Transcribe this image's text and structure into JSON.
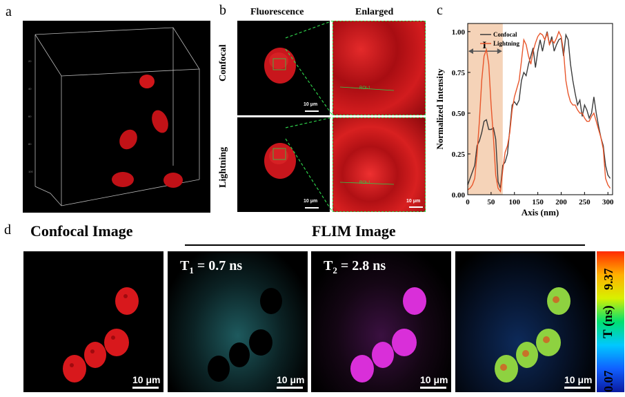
{
  "panels": {
    "a": {
      "label": "a"
    },
    "b": {
      "label": "b",
      "col_headers": [
        "Fluorescence",
        "Enlarged"
      ],
      "row_labels": [
        "Confocal",
        "Lightning"
      ],
      "roi_label": "ROI-1",
      "scale_label": "10 μm"
    },
    "c": {
      "label": "c"
    },
    "d": {
      "label": "d",
      "confocal_title": "Confocal Image",
      "flim_title": "FLIM Image",
      "scale_label": "10 μm",
      "t1": {
        "base": "T",
        "sub": "1",
        "rest": " = 0.7 ns"
      },
      "t2": {
        "base": "T",
        "sub": "2",
        "rest": " = 2.8 ns"
      },
      "colorbar": {
        "label": "T (ns)",
        "max": "9.37",
        "min": "0.07",
        "colors": [
          "#0a1aa0",
          "#1060ff",
          "#00c8ff",
          "#00e070",
          "#d8f000",
          "#ffb000",
          "#ff2a00"
        ]
      }
    }
  },
  "chart_data": {
    "type": "line",
    "xlabel": "Axis (nm)",
    "ylabel": "Normalized Intensity",
    "xlim": [
      0,
      310
    ],
    "ylim": [
      0,
      1.05
    ],
    "xticks": [
      0,
      50,
      100,
      150,
      200,
      250,
      300
    ],
    "yticks": [
      0.0,
      0.25,
      0.5,
      0.75,
      1.0
    ],
    "ytick_labels": [
      "0.00",
      "0.25",
      "0.50",
      "0.75",
      "1.00"
    ],
    "legend": "top-left",
    "region": {
      "label": "I",
      "x_start": 0,
      "x_end": 75,
      "color": "#f5d3b8"
    },
    "series": [
      {
        "name": "Confocal",
        "color": "#3a3a3a",
        "x": [
          0,
          5,
          10,
          15,
          20,
          25,
          30,
          35,
          40,
          45,
          50,
          55,
          60,
          65,
          70,
          75,
          80,
          85,
          90,
          95,
          100,
          105,
          110,
          115,
          120,
          125,
          130,
          135,
          140,
          145,
          150,
          155,
          160,
          165,
          170,
          175,
          180,
          185,
          190,
          195,
          200,
          205,
          210,
          215,
          220,
          225,
          230,
          235,
          240,
          245,
          250,
          255,
          260,
          265,
          270,
          275,
          280,
          285,
          290,
          295,
          300,
          305
        ],
        "y": [
          0.06,
          0.1,
          0.14,
          0.18,
          0.3,
          0.33,
          0.38,
          0.45,
          0.46,
          0.4,
          0.4,
          0.41,
          0.34,
          0.08,
          0.04,
          0.18,
          0.2,
          0.25,
          0.4,
          0.55,
          0.57,
          0.55,
          0.58,
          0.7,
          0.75,
          0.73,
          0.8,
          0.85,
          0.9,
          0.78,
          0.88,
          0.95,
          0.88,
          0.95,
          1.0,
          0.92,
          0.97,
          0.88,
          0.92,
          0.95,
          0.96,
          0.85,
          0.98,
          0.95,
          0.8,
          0.7,
          0.62,
          0.55,
          0.58,
          0.48,
          0.55,
          0.52,
          0.47,
          0.5,
          0.6,
          0.5,
          0.42,
          0.35,
          0.3,
          0.18,
          0.12,
          0.1
        ]
      },
      {
        "name": "Lightning",
        "color": "#e8552a",
        "x": [
          0,
          5,
          10,
          15,
          20,
          25,
          30,
          35,
          40,
          45,
          50,
          55,
          60,
          65,
          70,
          75,
          80,
          85,
          90,
          95,
          100,
          105,
          110,
          115,
          120,
          125,
          130,
          135,
          140,
          145,
          150,
          155,
          160,
          165,
          170,
          175,
          180,
          185,
          190,
          195,
          200,
          205,
          210,
          215,
          220,
          225,
          230,
          235,
          240,
          245,
          250,
          255,
          260,
          265,
          270,
          275,
          280,
          285,
          290,
          295,
          300,
          305
        ],
        "y": [
          0.03,
          0.04,
          0.06,
          0.1,
          0.25,
          0.45,
          0.7,
          0.85,
          0.89,
          0.8,
          0.55,
          0.35,
          0.12,
          0.04,
          0.02,
          0.15,
          0.26,
          0.3,
          0.38,
          0.52,
          0.6,
          0.65,
          0.7,
          0.82,
          0.95,
          0.92,
          0.85,
          0.8,
          0.88,
          0.93,
          0.97,
          0.99,
          0.98,
          0.95,
          0.99,
          0.92,
          0.95,
          0.93,
          0.96,
          1.0,
          0.97,
          0.88,
          0.7,
          0.62,
          0.57,
          0.55,
          0.55,
          0.52,
          0.5,
          0.5,
          0.47,
          0.45,
          0.45,
          0.48,
          0.5,
          0.45,
          0.4,
          0.35,
          0.28,
          0.1,
          0.06,
          0.04
        ]
      }
    ]
  }
}
